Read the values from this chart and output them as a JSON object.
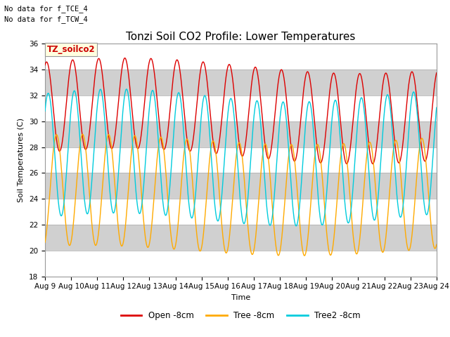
{
  "title": "Tonzi Soil CO2 Profile: Lower Temperatures",
  "xlabel": "Time",
  "ylabel": "Soil Temperatures (C)",
  "ylim": [
    18,
    36
  ],
  "xlim": [
    0,
    15
  ],
  "yticks": [
    18,
    20,
    22,
    24,
    26,
    28,
    30,
    32,
    34,
    36
  ],
  "xtick_labels": [
    "Aug 9",
    "Aug 10",
    "Aug 11",
    "Aug 12",
    "Aug 13",
    "Aug 14",
    "Aug 15",
    "Aug 16",
    "Aug 17",
    "Aug 18",
    "Aug 19",
    "Aug 20",
    "Aug 21",
    "Aug 22",
    "Aug 23",
    "Aug 24"
  ],
  "annotation1": "No data for f_TCE_4",
  "annotation2": "No data for f_TCW_4",
  "legend_box_label": "TZ_soilco2",
  "line_colors": [
    "#dd0000",
    "#ffaa00",
    "#00ccdd"
  ],
  "legend_labels": [
    "Open -8cm",
    "Tree -8cm",
    "Tree2 -8cm"
  ],
  "title_fontsize": 11,
  "axis_fontsize": 8,
  "tick_fontsize": 7.5,
  "legend_fontsize": 8.5,
  "band_colors": [
    "#e8e8e8",
    "#d0d0d0"
  ],
  "red_mean": 30.8,
  "red_amp": 3.5,
  "red_phase": 1.2,
  "orange_mean": 24.3,
  "orange_amp": 4.3,
  "orange_phase": -1.2,
  "cyan_mean": 27.2,
  "cyan_amp": 4.8,
  "cyan_phase": 0.8
}
